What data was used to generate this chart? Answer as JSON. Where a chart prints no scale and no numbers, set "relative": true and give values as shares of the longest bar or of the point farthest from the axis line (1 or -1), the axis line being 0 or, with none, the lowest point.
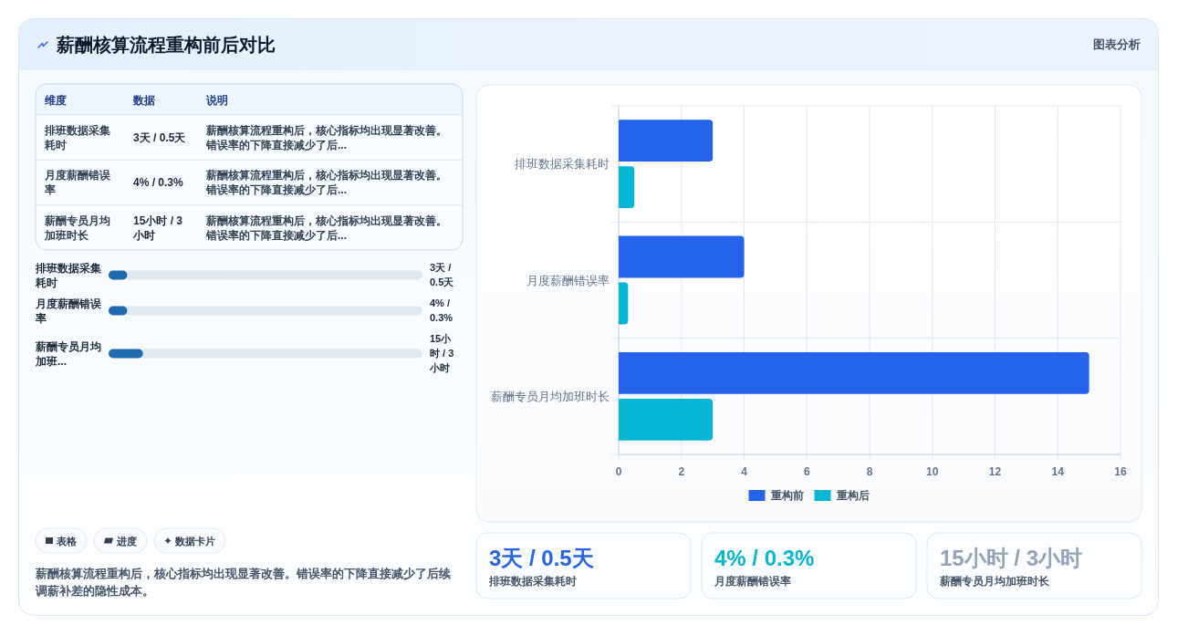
{
  "chart_data": [
    {
      "type": "other",
      "title": "薪酬核算流程重构前后对比",
      "annotations": [
        "图表分析"
      ]
    },
    {
      "type": "other",
      "ylabel": "维度",
      "categories": [
        "数据",
        "说明"
      ],
      "y_categories": [
        "排班数据采集耗时",
        "月度薪酬错误率",
        "薪酬专员月均加班时长"
      ],
      "cell_labels": [
        [
          "3天 / 0.5天",
          "薪酬核算流程重构后，核心指标均出现显著改善。错误率的下降直接减少了后..."
        ],
        [
          "4% / 0.3%",
          "薪酬核算流程重构后，核心指标均出现显著改善。错误率的下降直接减少了后..."
        ],
        [
          "15小时 / 3小时",
          "薪酬核算流程重构后，核心指标均出现显著改善。错误率的下降直接减少了后..."
        ]
      ]
    },
    {
      "type": "bar",
      "orientation": "horizontal",
      "stacked": true,
      "relative": true,
      "categories": [
        "排班数据采集耗时",
        "月度薪酬错误率",
        "薪酬专员月均加班..."
      ],
      "series": [
        {
          "color": "#1e6bb0",
          "values": [
            0.06,
            0.06,
            0.11
          ]
        },
        {
          "color": "#e2e8f0",
          "values": [
            0.94,
            0.94,
            0.89
          ]
        }
      ],
      "annotations": [
        "3天 / 0.5天",
        "4% / 0.3%",
        "15小时 / 3小时"
      ]
    },
    {
      "type": "bar",
      "orientation": "horizontal",
      "categories": [
        "排班数据采集耗时",
        "月度薪酬错误率",
        "薪酬专员月均加班时长"
      ],
      "series": [
        {
          "name": "重构前",
          "color": "#2563eb",
          "values": [
            3,
            4,
            15
          ]
        },
        {
          "name": "重构后",
          "color": "#06b6d4",
          "values": [
            0.5,
            0.3,
            3
          ]
        }
      ],
      "xlim": [
        0,
        16
      ],
      "xticks": [
        0,
        2,
        4,
        6,
        8,
        10,
        12,
        14,
        16
      ],
      "grid": true,
      "legend": "bottom"
    },
    {
      "type": "other",
      "categories": [
        "排班数据采集耗时",
        "月度薪酬错误率",
        "薪酬专员月均加班时长"
      ],
      "value_labels": [
        "3天 / 0.5天",
        "4% / 0.3%",
        "15小时 / 3小时"
      ]
    },
    {
      "type": "other",
      "categories": [
        "表格",
        "进度",
        "数据卡片"
      ],
      "annotations": [
        "薪酬核算流程重构后，核心指标均出现显著改善。错误率的下降直接减少了后续调薪补差的隐性成本。"
      ]
    }
  ]
}
